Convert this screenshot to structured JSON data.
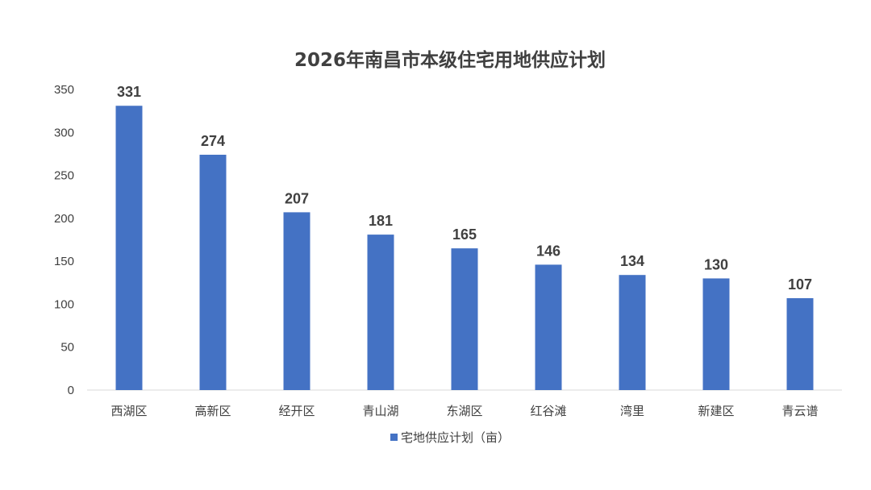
{
  "chart_data": {
    "type": "bar",
    "title": "2026年南昌市本级住宅用地供应计划",
    "categories": [
      "西湖区",
      "高新区",
      "经开区",
      "青山湖",
      "东湖区",
      "红谷滩",
      "湾里",
      "新建区",
      "青云谱"
    ],
    "series": [
      {
        "name": "宅地供应计划（亩）",
        "values": [
          331,
          274,
          207,
          181,
          165,
          146,
          134,
          130,
          107
        ],
        "color": "#4472C4"
      }
    ],
    "y_ticks": [
      0,
      50,
      100,
      150,
      200,
      250,
      300,
      350
    ],
    "ylim": [
      0,
      350
    ],
    "xlabel": "",
    "ylabel": "",
    "grid": false,
    "legend_position": "bottom",
    "data_labels": true
  }
}
